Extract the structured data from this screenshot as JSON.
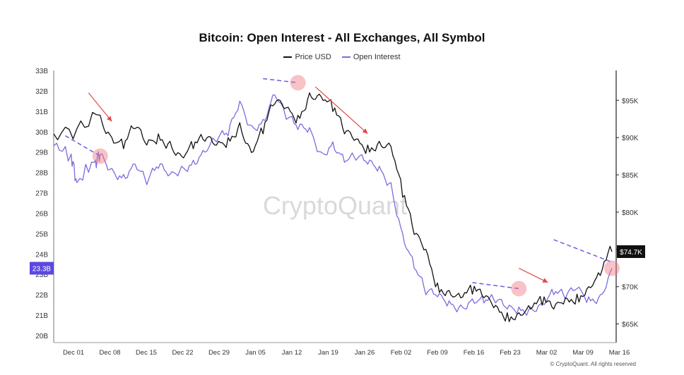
{
  "chart_data": {
    "type": "line",
    "title": "Bitcoin: Open Interest - All Exchanges, All Symbol",
    "watermark": "CryptoQuant",
    "footer": "© CryptoQuant. All rights reserved",
    "x_ticks": [
      "Dec 01",
      "Dec 08",
      "Dec 15",
      "Dec 22",
      "Dec 29",
      "Jan 05",
      "Jan 12",
      "Jan 19",
      "Jan 26",
      "Feb 02",
      "Feb 09",
      "Feb 16",
      "Feb 23",
      "Mar 02",
      "Mar 09",
      "Mar 16"
    ],
    "left_axis": {
      "ticks": [
        "20B",
        "21B",
        "22B",
        "23B",
        "24B",
        "25B",
        "26B",
        "27B",
        "28B",
        "29B",
        "30B",
        "31B",
        "32B",
        "33B"
      ],
      "range": [
        20,
        33
      ],
      "marker": "23.3B",
      "marker_value": 23.3
    },
    "right_axis": {
      "ticks": [
        "$65K",
        "$70K",
        "$75K",
        "$80K",
        "$85K",
        "$90K",
        "$95K"
      ],
      "tick_values": [
        65,
        70,
        75,
        80,
        85,
        90,
        95
      ],
      "range": [
        62.5,
        99
      ],
      "marker": "$74.7K",
      "marker_value": 74.7
    },
    "legend_position": "top-center",
    "series": [
      {
        "name": "Price USD",
        "color": "#111111",
        "axis": "right",
        "points": [
          [
            0,
            90.5
          ],
          [
            4,
            91.2
          ],
          [
            8,
            93.0
          ],
          [
            10,
            90.0
          ],
          [
            12,
            88.5
          ],
          [
            14,
            91.2
          ],
          [
            16,
            89.0
          ],
          [
            18,
            90.5
          ],
          [
            20,
            89.5
          ],
          [
            22,
            87.5
          ],
          [
            24,
            88.5
          ],
          [
            26,
            89.5
          ],
          [
            28,
            89.0
          ],
          [
            30,
            90.0
          ],
          [
            32,
            92.0
          ],
          [
            34,
            88.0
          ],
          [
            36,
            90.5
          ],
          [
            38,
            94.5
          ],
          [
            40,
            94.0
          ],
          [
            42,
            93.0
          ],
          [
            44,
            96.0
          ],
          [
            46,
            95.5
          ],
          [
            48,
            93.5
          ],
          [
            50,
            90.5
          ],
          [
            52,
            89.8
          ],
          [
            54,
            89.0
          ],
          [
            56,
            89.5
          ],
          [
            58,
            88.8
          ],
          [
            60,
            82.0
          ],
          [
            62,
            77.0
          ],
          [
            64,
            75.0
          ],
          [
            66,
            70.5
          ],
          [
            68,
            69.5
          ],
          [
            70,
            68.5
          ],
          [
            72,
            69.0
          ],
          [
            74,
            68.5
          ],
          [
            76,
            67.5
          ],
          [
            78,
            66.5
          ],
          [
            80,
            66.5
          ],
          [
            82,
            67.0
          ],
          [
            84,
            67.5
          ],
          [
            86,
            67.0
          ],
          [
            88,
            68.5
          ],
          [
            90,
            69.0
          ],
          [
            92,
            70.0
          ],
          [
            94,
            71.5
          ],
          [
            96,
            74.7
          ]
        ]
      },
      {
        "name": "Open Interest",
        "color": "#7b6ce0",
        "axis": "left",
        "points": [
          [
            0,
            29.3
          ],
          [
            3,
            28.9
          ],
          [
            4,
            27.5
          ],
          [
            7,
            28.5
          ],
          [
            8,
            28.9
          ],
          [
            10,
            28.2
          ],
          [
            12,
            27.9
          ],
          [
            14,
            28.4
          ],
          [
            16,
            27.4
          ],
          [
            18,
            28.2
          ],
          [
            20,
            27.9
          ],
          [
            22,
            28.3
          ],
          [
            24,
            28.6
          ],
          [
            26,
            29.0
          ],
          [
            28,
            29.5
          ],
          [
            30,
            29.8
          ],
          [
            32,
            31.5
          ],
          [
            34,
            30.3
          ],
          [
            36,
            30.6
          ],
          [
            38,
            31.8
          ],
          [
            40,
            30.6
          ],
          [
            42,
            30.1
          ],
          [
            44,
            30.2
          ],
          [
            46,
            29.0
          ],
          [
            48,
            29.5
          ],
          [
            50,
            28.5
          ],
          [
            52,
            28.6
          ],
          [
            54,
            28.4
          ],
          [
            56,
            28.3
          ],
          [
            58,
            27.5
          ],
          [
            60,
            25.0
          ],
          [
            62,
            23.3
          ],
          [
            64,
            22.0
          ],
          [
            66,
            21.9
          ],
          [
            68,
            21.7
          ],
          [
            70,
            21.5
          ],
          [
            72,
            21.8
          ],
          [
            74,
            21.6
          ],
          [
            76,
            21.6
          ],
          [
            78,
            21.3
          ],
          [
            80,
            21.4
          ],
          [
            82,
            21.4
          ],
          [
            84,
            21.6
          ],
          [
            86,
            22.0
          ],
          [
            88,
            21.8
          ],
          [
            90,
            22.3
          ],
          [
            92,
            21.9
          ],
          [
            94,
            22.0
          ],
          [
            96,
            23.3
          ]
        ]
      }
    ],
    "annotations": {
      "circles": [
        [
          8,
          28.8
        ],
        [
          42,
          32.4
        ],
        [
          80,
          22.3
        ],
        [
          96,
          23.3
        ]
      ],
      "dashed_trends": [
        [
          [
            2,
            29.8
          ],
          [
            8,
            28.8
          ]
        ],
        [
          [
            36,
            32.6
          ],
          [
            42,
            32.4
          ]
        ],
        [
          [
            72,
            22.6
          ],
          [
            80,
            22.3
          ]
        ],
        [
          [
            86,
            24.7
          ],
          [
            96,
            23.6
          ]
        ]
      ],
      "arrows": [
        [
          [
            6,
            31.9
          ],
          [
            10,
            30.5
          ]
        ],
        [
          [
            45,
            32.2
          ],
          [
            54,
            29.9
          ]
        ],
        [
          [
            80,
            23.3
          ],
          [
            85,
            22.6
          ]
        ]
      ]
    }
  }
}
